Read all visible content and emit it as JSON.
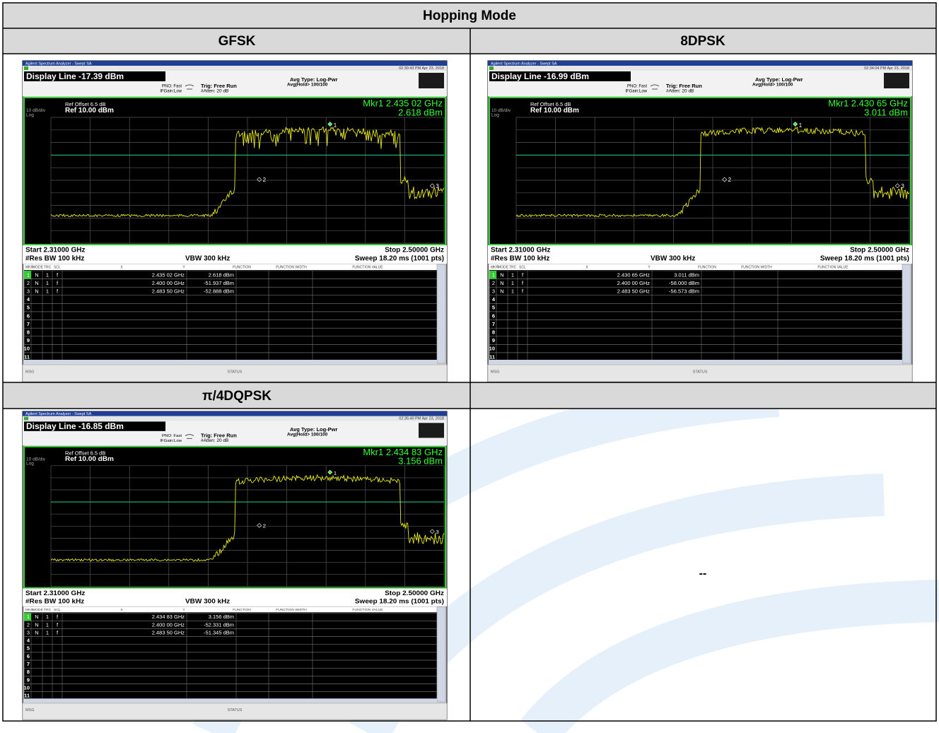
{
  "table": {
    "title": "Hopping Mode",
    "rows": [
      [
        {
          "label": "GFSK",
          "screen": {
            "app_title": "Agilent Spectrum Analyzer - Swept SA",
            "timestamp": "02:30:43 PM Apr 23, 2018",
            "display_line": "Display Line -17.39 dBm",
            "pno": "PNO: Fast",
            "ifgain": "IFGain:Low",
            "trig": "Trig: Free Run",
            "atten": "#Atten: 20 dB",
            "avg_type": "Avg Type: Log-Pwr",
            "avg_hold": "Avg|Hold> 100/100",
            "ref_offset": "Ref Offset 6.5 dB",
            "scale": "10 dB/div",
            "ref": "Ref 10.00 dBm",
            "log": "Log",
            "marker_freq": "Mkr1 2.435 02 GHz",
            "marker_level": "2.618 dBm",
            "trace_markers": [
              "1",
              "2",
              "3"
            ],
            "start": "Start 2.31000 GHz",
            "rbw": "#Res BW 100 kHz",
            "vbw": "VBW 300 kHz",
            "stop": "Stop 2.50000 GHz",
            "sweep": "Sweep  18.20 ms (1001 pts)",
            "table_headers": [
              "MKR",
              "MODE",
              "TRC",
              "SCL",
              "X",
              "Y",
              "FUNCTION",
              "FUNCTION WIDTH",
              "FUNCTION VALUE"
            ],
            "markers": [
              [
                "1",
                "N",
                "1",
                "f",
                "2.435 02 GHz",
                "2.618 dBm"
              ],
              [
                "2",
                "N",
                "1",
                "f",
                "2.400 00 GHz",
                "-51.937 dBm"
              ],
              [
                "3",
                "N",
                "1",
                "f",
                "2.483 50 GHz",
                "-52.888 dBm"
              ]
            ],
            "row_numbers": [
              "4",
              "5",
              "6",
              "7",
              "8",
              "9",
              "10",
              "11"
            ],
            "msg": "MSG",
            "status": "STATUS"
          }
        },
        {
          "label": "8DPSK",
          "screen": {
            "app_title": "Agilent Spectrum Analyzer - Swept SA",
            "timestamp": "02:34:04 PM Apr 23, 2018",
            "display_line": "Display Line -16.99 dBm",
            "pno": "PNO: Fast",
            "ifgain": "IFGain:Low",
            "trig": "Trig: Free Run",
            "atten": "#Atten: 20 dB",
            "avg_type": "Avg Type: Log-Pwr",
            "avg_hold": "Avg|Hold> 100/100",
            "ref_offset": "Ref Offset 6.5 dB",
            "scale": "10 dB/div",
            "ref": "Ref 10.00 dBm",
            "log": "Log",
            "marker_freq": "Mkr1 2.430 65 GHz",
            "marker_level": "3.011 dBm",
            "trace_markers": [
              "1",
              "2",
              "3"
            ],
            "start": "Start 2.31000 GHz",
            "rbw": "#Res BW 100 kHz",
            "vbw": "VBW 300 kHz",
            "stop": "Stop 2.50000 GHz",
            "sweep": "Sweep  18.20 ms (1001 pts)",
            "table_headers": [
              "MKR",
              "MODE",
              "TRC",
              "SCL",
              "X",
              "Y",
              "FUNCTION",
              "FUNCTION WIDTH",
              "FUNCTION VALUE"
            ],
            "markers": [
              [
                "1",
                "N",
                "1",
                "f",
                "2.430 65 GHz",
                "3.011 dBm"
              ],
              [
                "2",
                "N",
                "1",
                "f",
                "2.400 00 GHz",
                "-58.000 dBm"
              ],
              [
                "3",
                "N",
                "1",
                "f",
                "2.483 50 GHz",
                "-56.573 dBm"
              ]
            ],
            "row_numbers": [
              "4",
              "5",
              "6",
              "7",
              "8",
              "9",
              "10",
              "11"
            ],
            "msg": "MSG",
            "status": "STATUS"
          }
        }
      ],
      [
        {
          "label": "π/4DQPSK",
          "screen": {
            "app_title": "Agilent Spectrum Analyzer - Swept SA",
            "timestamp": "02:35:40 PM Apr 23, 2018",
            "display_line": "Display Line -16.85 dBm",
            "pno": "PNO: Fast",
            "ifgain": "IFGain:Low",
            "trig": "Trig: Free Run",
            "atten": "#Atten: 20 dB",
            "avg_type": "Avg Type: Log-Pwr",
            "avg_hold": "Avg|Hold> 100/100",
            "ref_offset": "Ref Offset 6.5 dB",
            "scale": "10 dB/div",
            "ref": "Ref 10.00 dBm",
            "log": "Log",
            "marker_freq": "Mkr1 2.434 83 GHz",
            "marker_level": "3.156 dBm",
            "trace_markers": [
              "1",
              "2",
              "3"
            ],
            "start": "Start 2.31000 GHz",
            "rbw": "#Res BW 100 kHz",
            "vbw": "VBW 300 kHz",
            "stop": "Stop 2.50000 GHz",
            "sweep": "Sweep  18.20 ms (1001 pts)",
            "table_headers": [
              "MKR",
              "MODE",
              "TRC",
              "SCL",
              "X",
              "Y",
              "FUNCTION",
              "FUNCTION WIDTH",
              "FUNCTION VALUE"
            ],
            "markers": [
              [
                "1",
                "N",
                "1",
                "f",
                "2.434 83 GHz",
                "3.156 dBm"
              ],
              [
                "2",
                "N",
                "1",
                "f",
                "2.400 00 GHz",
                "-52.331 dBm"
              ],
              [
                "3",
                "N",
                "1",
                "f",
                "2.483 50 GHz",
                "-51.345 dBm"
              ]
            ],
            "row_numbers": [
              "4",
              "5",
              "6",
              "7",
              "8",
              "9",
              "10",
              "11"
            ],
            "msg": "MSG",
            "status": "STATUS"
          }
        },
        {
          "text": "--"
        }
      ]
    ]
  }
}
